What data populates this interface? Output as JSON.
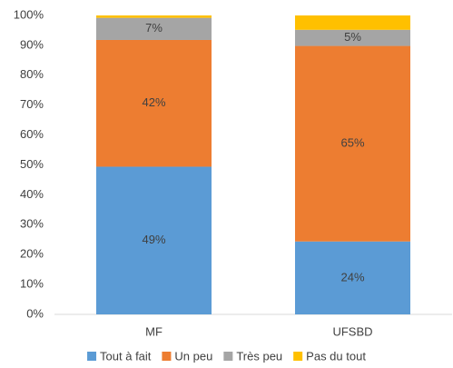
{
  "chart_data": {
    "type": "stacked_bar",
    "categories": [
      "MF",
      "UFSBD"
    ],
    "series": [
      {
        "name": "Tout à fait",
        "color": "#5b9bd5",
        "values": [
          49.4,
          24.4
        ],
        "value_labels": [
          "49%",
          "24%"
        ]
      },
      {
        "name": "Un peu",
        "color": "#ed7d31",
        "values": [
          42.4,
          65.4
        ],
        "value_labels": [
          "42%",
          "65%"
        ]
      },
      {
        "name": "Très peu",
        "color": "#a5a5a5",
        "values": [
          7.4,
          5.4
        ],
        "value_labels": [
          "7%",
          "5%"
        ]
      },
      {
        "name": "Pas du tout",
        "color": "#ffc000",
        "values": [
          0.8,
          4.8
        ]
      }
    ],
    "ylim": [
      0,
      100
    ],
    "yticks": [
      {
        "value": 0,
        "label": "0%"
      },
      {
        "value": 10,
        "label": "10%"
      },
      {
        "value": 20,
        "label": "20%"
      },
      {
        "value": 30,
        "label": "30%"
      },
      {
        "value": 40,
        "label": "40%"
      },
      {
        "value": 50,
        "label": "50%"
      },
      {
        "value": 60,
        "label": "60%"
      },
      {
        "value": 70,
        "label": "70%"
      },
      {
        "value": 80,
        "label": "80%"
      },
      {
        "value": 90,
        "label": "90%"
      },
      {
        "value": 100,
        "label": "100%"
      }
    ],
    "legend": "bottom"
  }
}
